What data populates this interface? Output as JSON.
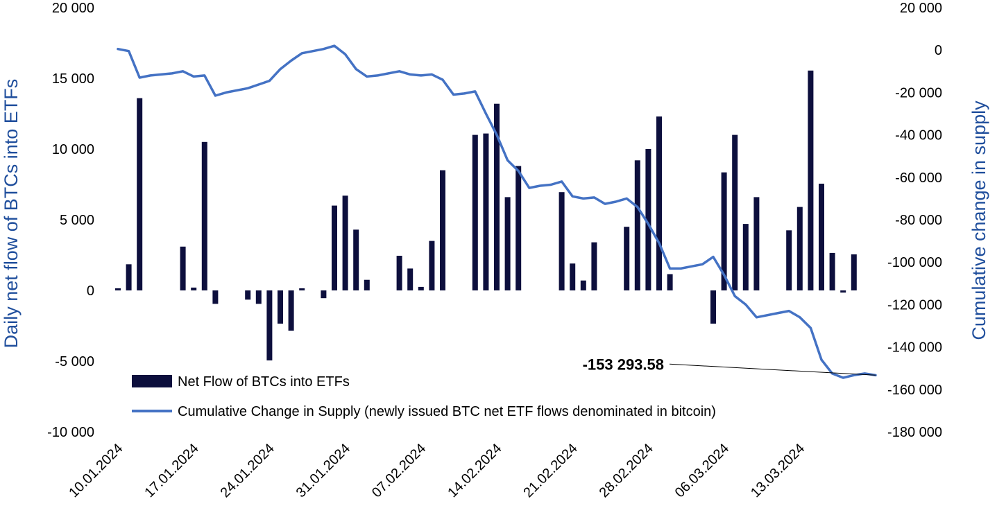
{
  "chart_data": {
    "type": "bar",
    "title": "",
    "ylabel": "Daily net flow of BTCs into ETFs",
    "y2label": "Cumulative change in supply",
    "ylim": [
      -10000,
      20000
    ],
    "y2lim": [
      -180000,
      20000
    ],
    "yticks": [
      "20 000",
      "15 000",
      "10 000",
      "5 000",
      "0",
      "-5 000",
      "-10 000"
    ],
    "y2ticks": [
      "20 000",
      "0",
      "-20 000",
      "-40 000",
      "-60 000",
      "-80 000",
      "-100 000",
      "-120 000",
      "-140 000",
      "-160 000",
      "-180 000"
    ],
    "x_start": "10.01.2024",
    "x_end": "18.03.2024",
    "xticks": [
      "10.01.2024",
      "17.01.2024",
      "24.01.2024",
      "31.01.2024",
      "07.02.2024",
      "14.02.2024",
      "21.02.2024",
      "28.02.2024",
      "06.03.2024",
      "13.03.2024"
    ],
    "legend_position": "bottom-center",
    "series": [
      {
        "name": "Net Flow of BTCs into ETFs",
        "type": "bar",
        "axis": "left",
        "color": "#0d0f3d",
        "points": [
          [
            "10.01.2024",
            150
          ],
          [
            "11.01.2024",
            1850
          ],
          [
            "12.01.2024",
            13600
          ],
          [
            "16.01.2024",
            3100
          ],
          [
            "17.01.2024",
            200
          ],
          [
            "18.01.2024",
            10500
          ],
          [
            "19.01.2024",
            -950
          ],
          [
            "22.01.2024",
            -650
          ],
          [
            "23.01.2024",
            -950
          ],
          [
            "24.01.2024",
            -4950
          ],
          [
            "25.01.2024",
            -2350
          ],
          [
            "26.01.2024",
            -2850
          ],
          [
            "27.01.2024",
            150
          ],
          [
            "29.01.2024",
            -550
          ],
          [
            "30.01.2024",
            6000
          ],
          [
            "31.01.2024",
            6700
          ],
          [
            "01.02.2024",
            4300
          ],
          [
            "02.02.2024",
            750
          ],
          [
            "05.02.2024",
            2450
          ],
          [
            "06.02.2024",
            1550
          ],
          [
            "07.02.2024",
            250
          ],
          [
            "08.02.2024",
            3500
          ],
          [
            "09.02.2024",
            8500
          ],
          [
            "12.02.2024",
            11000
          ],
          [
            "13.02.2024",
            11100
          ],
          [
            "14.02.2024",
            13200
          ],
          [
            "15.02.2024",
            6600
          ],
          [
            "16.02.2024",
            8800
          ],
          [
            "20.02.2024",
            6950
          ],
          [
            "21.02.2024",
            1900
          ],
          [
            "22.02.2024",
            700
          ],
          [
            "23.02.2024",
            3400
          ],
          [
            "26.02.2024",
            4500
          ],
          [
            "27.02.2024",
            9200
          ],
          [
            "28.02.2024",
            10000
          ],
          [
            "29.02.2024",
            12300
          ],
          [
            "01.03.2024",
            1150
          ],
          [
            "05.03.2024",
            -2350
          ],
          [
            "06.03.2024",
            8350
          ],
          [
            "07.03.2024",
            11000
          ],
          [
            "08.03.2024",
            4700
          ],
          [
            "09.03.2024",
            6600
          ],
          [
            "12.03.2024",
            4250
          ],
          [
            "13.03.2024",
            5900
          ],
          [
            "14.03.2024",
            15550
          ],
          [
            "15.03.2024",
            7550
          ],
          [
            "16.03.2024",
            2650
          ],
          [
            "17.03.2024",
            -150
          ],
          [
            "18.03.2024",
            2550
          ]
        ]
      },
      {
        "name": "Cumulative Change in Supply (newly issued BTC net ETF flows denominated in bitcoin)",
        "type": "line",
        "axis": "right",
        "color": "#4472c4",
        "points": [
          [
            "10.01.2024",
            500
          ],
          [
            "11.01.2024",
            -500
          ],
          [
            "12.01.2024",
            -13000
          ],
          [
            "13.01.2024",
            -12000
          ],
          [
            "15.01.2024",
            -11000
          ],
          [
            "16.01.2024",
            -10000
          ],
          [
            "17.01.2024",
            -12500
          ],
          [
            "18.01.2024",
            -12000
          ],
          [
            "19.01.2024",
            -21500
          ],
          [
            "20.01.2024",
            -20000
          ],
          [
            "22.01.2024",
            -18000
          ],
          [
            "24.01.2024",
            -14500
          ],
          [
            "25.01.2024",
            -9000
          ],
          [
            "26.01.2024",
            -5000
          ],
          [
            "27.01.2024",
            -1500
          ],
          [
            "29.01.2024",
            500
          ],
          [
            "30.01.2024",
            2000
          ],
          [
            "31.01.2024",
            -2000
          ],
          [
            "01.02.2024",
            -9000
          ],
          [
            "02.02.2024",
            -12500
          ],
          [
            "03.02.2024",
            -12000
          ],
          [
            "05.02.2024",
            -10000
          ],
          [
            "06.02.2024",
            -11500
          ],
          [
            "07.02.2024",
            -12000
          ],
          [
            "08.02.2024",
            -11500
          ],
          [
            "09.02.2024",
            -14000
          ],
          [
            "10.02.2024",
            -21000
          ],
          [
            "11.02.2024",
            -20500
          ],
          [
            "12.02.2024",
            -19500
          ],
          [
            "13.02.2024",
            -30000
          ],
          [
            "14.02.2024",
            -40000
          ],
          [
            "15.02.2024",
            -52000
          ],
          [
            "16.02.2024",
            -57000
          ],
          [
            "17.02.2024",
            -65000
          ],
          [
            "18.02.2024",
            -64000
          ],
          [
            "19.02.2024",
            -63500
          ],
          [
            "20.02.2024",
            -62000
          ],
          [
            "21.02.2024",
            -69000
          ],
          [
            "22.02.2024",
            -70000
          ],
          [
            "23.02.2024",
            -69500
          ],
          [
            "24.02.2024",
            -72500
          ],
          [
            "25.02.2024",
            -71500
          ],
          [
            "26.02.2024",
            -70000
          ],
          [
            "27.02.2024",
            -74000
          ],
          [
            "28.02.2024",
            -82000
          ],
          [
            "29.02.2024",
            -91000
          ],
          [
            "01.03.2024",
            -103000
          ],
          [
            "02.03.2024",
            -103000
          ],
          [
            "03.03.2024",
            -102000
          ],
          [
            "04.03.2024",
            -101000
          ],
          [
            "05.03.2024",
            -97500
          ],
          [
            "06.03.2024",
            -106000
          ],
          [
            "07.03.2024",
            -116000
          ],
          [
            "08.03.2024",
            -120000
          ],
          [
            "09.03.2024",
            -126000
          ],
          [
            "11.03.2024",
            -124000
          ],
          [
            "12.03.2024",
            -123000
          ],
          [
            "13.03.2024",
            -126000
          ],
          [
            "14.03.2024",
            -131000
          ],
          [
            "15.03.2024",
            -146000
          ],
          [
            "16.03.2024",
            -152500
          ],
          [
            "17.03.2024",
            -154500
          ],
          [
            "18.03.2024",
            -153300
          ],
          [
            "19.03.2024",
            -152500
          ],
          [
            "20.03.2024",
            -153294
          ]
        ]
      }
    ],
    "annotations": [
      {
        "text": "-153 293.58",
        "at": [
          "20.03.2024",
          -153294
        ],
        "axis": "right"
      }
    ]
  }
}
